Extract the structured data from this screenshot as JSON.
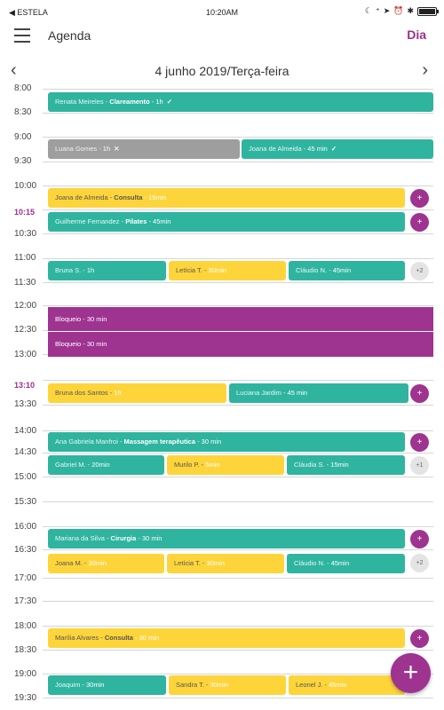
{
  "status_bar": {
    "carrier": "◀ ESTELA",
    "time": "10:20AM",
    "icons": [
      "moon-icon",
      "signal-icon",
      "location-icon",
      "alarm-icon",
      "bluetooth-icon",
      "battery-icon"
    ]
  },
  "header": {
    "title": "Agenda",
    "view_mode": "Dia",
    "menu_icon": "hamburger-icon",
    "accent": "#9b2f8f"
  },
  "date_nav": {
    "prev": "‹",
    "next": "›",
    "title": "4 junho 2019/Terça-feira"
  },
  "time_slots": [
    "8:00",
    "8:30",
    "9:00",
    "9:30",
    "10:00",
    "10:15",
    "10:30",
    "11:00",
    "11:30",
    "12:00",
    "12:30",
    "13:00",
    "13:10",
    "13:30",
    "14:00",
    "14:30",
    "15:00",
    "15:30",
    "16:00",
    "16:30",
    "17:00",
    "17:30",
    "18:00",
    "18:30",
    "19:00",
    "19:30"
  ],
  "current_times": [
    "10:15",
    "13:10"
  ],
  "colors": {
    "teal": "#2fb4a0",
    "yellow": "#fdd53b",
    "grey": "#9e9e9e",
    "purple": "#9e3390"
  },
  "events": [
    {
      "name": "Renata Meireles - ",
      "service": "Clareamento",
      "duration": " - 1h",
      "mark": "✓",
      "color": "teal"
    },
    {
      "name": "Luana Gomes - ",
      "service": "",
      "duration": "1h",
      "mark": "✕",
      "color": "grey"
    },
    {
      "name": "Joana de Almeida - ",
      "service": "",
      "duration": "45 min",
      "mark": "✓",
      "color": "teal"
    },
    {
      "name": "Joana de Almeida - ",
      "service": "Consulta",
      "duration": " - 15min",
      "color": "yellow"
    },
    {
      "name": "Guilherme Fernandez - ",
      "service": "Pilates",
      "duration": " - 45min",
      "color": "teal"
    },
    {
      "name": "Bruna S. - ",
      "service": "",
      "duration": "1h",
      "color": "teal"
    },
    {
      "name": "Letícia T. - ",
      "service": "",
      "duration": "30min",
      "color": "yellow"
    },
    {
      "name": "Cláudio N. - ",
      "service": "",
      "duration": "45min",
      "color": "teal"
    },
    {
      "name": "Bloqueio - 30 min",
      "service": "",
      "duration": "",
      "color": "purple"
    },
    {
      "name": "Bloqueio - 30 min",
      "service": "",
      "duration": "",
      "color": "purple"
    },
    {
      "name": "Bruna dos Santos - ",
      "service": "",
      "duration": "1h",
      "color": "yellow"
    },
    {
      "name": "Luciana Jardim - ",
      "service": "",
      "duration": "45 min",
      "color": "teal"
    },
    {
      "name": "Ana Gabriela Manfroi - ",
      "service": "Massagem terapêutica",
      "duration": " - 30 min",
      "color": "teal"
    },
    {
      "name": "Gabriel M. - ",
      "service": "",
      "duration": "20min",
      "color": "teal"
    },
    {
      "name": "Murilo P. - ",
      "service": "",
      "duration": "5min",
      "color": "yellow"
    },
    {
      "name": "Cláudia S. - ",
      "service": "",
      "duration": "15min",
      "color": "teal"
    },
    {
      "name": "Mariana da Silva - ",
      "service": "Cirurgia",
      "duration": " - 30 min",
      "color": "teal"
    },
    {
      "name": "Joana M. - ",
      "service": "",
      "duration": "30min",
      "color": "yellow"
    },
    {
      "name": "Letícia T. - ",
      "service": "",
      "duration": "30min",
      "color": "yellow"
    },
    {
      "name": "Cláudio N. - ",
      "service": "",
      "duration": "45min",
      "color": "teal"
    },
    {
      "name": "Marília Alvares - ",
      "service": "Consulta",
      "duration": " - 30 min",
      "color": "yellow"
    },
    {
      "name": "Joaquim - ",
      "service": "",
      "duration": "30min",
      "color": "teal"
    },
    {
      "name": "Sandra T. - ",
      "service": "",
      "duration": "30min",
      "color": "yellow"
    },
    {
      "name": "Leonel J. - ",
      "service": "",
      "duration": "45min",
      "color": "yellow"
    }
  ],
  "add_buttons": [
    "+",
    "+",
    "+",
    "+",
    "+",
    "+"
  ],
  "more_buttons": [
    "+2",
    "+1",
    "+2"
  ],
  "fab": "+"
}
